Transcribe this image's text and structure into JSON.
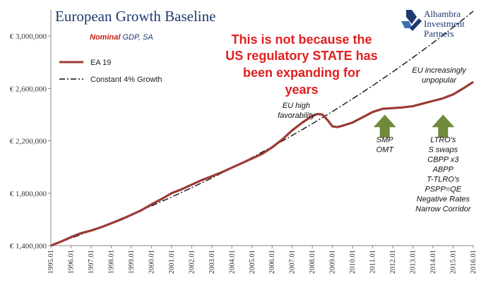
{
  "chart_data": {
    "type": "line",
    "title": "European Growth Baseline",
    "subtitle": {
      "emph": "Nominal",
      "rest": " GDP, SA"
    },
    "logo_text": [
      "Alhambra",
      "Investment",
      "Partners"
    ],
    "headline": [
      "This is not because the",
      "US regulatory STATE has",
      "been expanding for",
      "years"
    ],
    "xlabel": "",
    "ylabel": "",
    "x_range": [
      1995.0,
      2016.0
    ],
    "ylim": [
      1400000,
      3200000
    ],
    "y_ticks": [
      {
        "value": 1400000,
        "label": "€ 1,400,000"
      },
      {
        "value": 1800000,
        "label": "€ 1,800,000"
      },
      {
        "value": 2200000,
        "label": "€ 2,200,000"
      },
      {
        "value": 2600000,
        "label": "€ 2,600,000"
      },
      {
        "value": 3000000,
        "label": "€ 3,000,000"
      }
    ],
    "x_ticks": [
      {
        "value": 1995.0,
        "label": "1995.01"
      },
      {
        "value": 1996.0,
        "label": "1996.01"
      },
      {
        "value": 1997.0,
        "label": "1997.01"
      },
      {
        "value": 1998.0,
        "label": "1998.01"
      },
      {
        "value": 1999.0,
        "label": "1999.01"
      },
      {
        "value": 2000.0,
        "label": "2000.01"
      },
      {
        "value": 2001.0,
        "label": "2001.01"
      },
      {
        "value": 2002.0,
        "label": "2002.01"
      },
      {
        "value": 2003.0,
        "label": "2003.01"
      },
      {
        "value": 2004.0,
        "label": "2004.01"
      },
      {
        "value": 2005.0,
        "label": "2005.01"
      },
      {
        "value": 2006.0,
        "label": "2006.01"
      },
      {
        "value": 2007.0,
        "label": "2007.01"
      },
      {
        "value": 2008.0,
        "label": "2008.01"
      },
      {
        "value": 2009.0,
        "label": "2009.01"
      },
      {
        "value": 2010.0,
        "label": "2010.01"
      },
      {
        "value": 2011.0,
        "label": "2011.01"
      },
      {
        "value": 2012.0,
        "label": "2012.01"
      },
      {
        "value": 2013.0,
        "label": "2013.01"
      },
      {
        "value": 2014.0,
        "label": "2014.01"
      },
      {
        "value": 2015.0,
        "label": "2015.01"
      },
      {
        "value": 2016.0,
        "label": "2016.01"
      }
    ],
    "legend_position": "top-left",
    "grid": false,
    "series": [
      {
        "name": "EA 19",
        "color": "#9b3a34",
        "style": "solid",
        "x": [
          1995.0,
          1995.5,
          1996.0,
          1996.5,
          1997.0,
          1997.5,
          1998.0,
          1998.5,
          1999.0,
          1999.5,
          2000.0,
          2000.5,
          2001.0,
          2001.5,
          2002.0,
          2002.5,
          2003.0,
          2003.5,
          2004.0,
          2004.5,
          2005.0,
          2005.5,
          2006.0,
          2006.5,
          2007.0,
          2007.5,
          2008.0,
          2008.25,
          2008.5,
          2008.75,
          2009.0,
          2009.25,
          2009.5,
          2010.0,
          2010.5,
          2011.0,
          2011.5,
          2012.0,
          2012.5,
          2013.0,
          2013.5,
          2014.0,
          2014.5,
          2015.0,
          2015.5,
          2016.0
        ],
        "values": [
          1400000,
          1430000,
          1465000,
          1495000,
          1515000,
          1540000,
          1570000,
          1600000,
          1635000,
          1670000,
          1715000,
          1755000,
          1800000,
          1830000,
          1865000,
          1900000,
          1930000,
          1960000,
          1995000,
          2030000,
          2065000,
          2100000,
          2150000,
          2210000,
          2280000,
          2340000,
          2390000,
          2405000,
          2400000,
          2360000,
          2310000,
          2305000,
          2315000,
          2340000,
          2380000,
          2420000,
          2445000,
          2450000,
          2455000,
          2465000,
          2485000,
          2505000,
          2525000,
          2555000,
          2600000,
          2650000
        ]
      },
      {
        "name": "Constant 4% Growth",
        "color": "#111111",
        "style": "dashdot",
        "x": [
          1995.0,
          1996.0,
          1997.0,
          1998.0,
          1999.0,
          2000.0,
          2001.0,
          2002.0,
          2003.0,
          2004.0,
          2005.0,
          2006.0,
          2007.0,
          2008.0,
          2009.0,
          2010.0,
          2011.0,
          2012.0,
          2013.0,
          2014.0,
          2015.0,
          2016.0
        ],
        "values": [
          1400000,
          1456000,
          1514000,
          1575000,
          1638000,
          1703000,
          1771000,
          1842000,
          1916000,
          1993000,
          2072000,
          2155000,
          2241000,
          2331000,
          2424000,
          2521000,
          2622000,
          2727000,
          2836000,
          2949000,
          3067000,
          3190000
        ]
      }
    ],
    "annotations": [
      {
        "lines": [
          "EU high",
          "favorability"
        ],
        "x": 2007.2,
        "y": 2450000
      },
      {
        "lines": [
          "EU increasingly",
          "unpopular"
        ],
        "x": 2014.3,
        "y": 2720000
      },
      {
        "lines": [
          "SMP",
          "OMT"
        ],
        "x": 2011.6,
        "y": 2190000
      },
      {
        "lines": [
          "LTRO's",
          "S swaps",
          "CBPP x3",
          "ABPP",
          "T-TLRO's",
          "PSPP=QE",
          "Negative Rates",
          "Narrow Corridor"
        ],
        "x": 2014.5,
        "y": 2190000
      }
    ],
    "arrows": [
      {
        "x": 2011.6,
        "y_base": 2225000,
        "y_tip": 2400000,
        "color": "#6f8a3a"
      },
      {
        "x": 2014.5,
        "y_base": 2225000,
        "y_tip": 2400000,
        "color": "#6f8a3a"
      }
    ]
  }
}
